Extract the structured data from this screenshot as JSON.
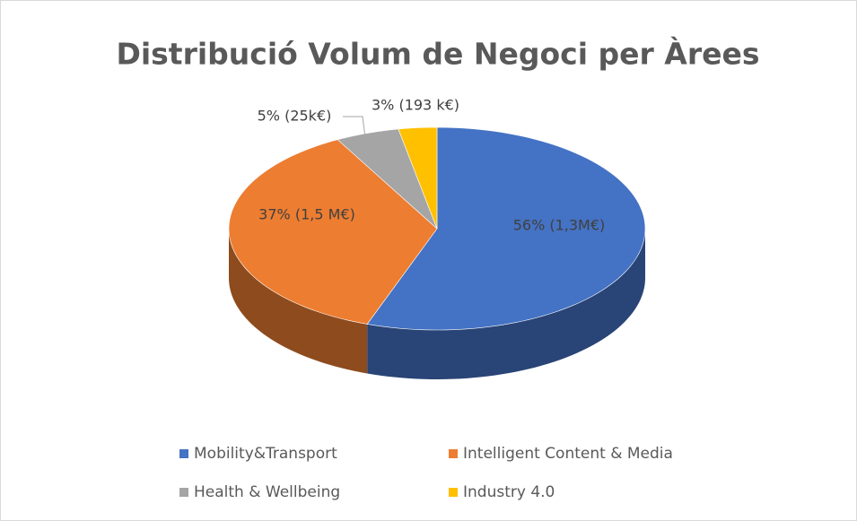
{
  "chart_data": {
    "type": "pie3d",
    "title": "Distribució Volum de Negoci per Àrees",
    "categories": [
      "Mobility&Transport",
      "Intelligent Content & Media",
      "Health & Wellbeing",
      "Industry 4.0"
    ],
    "values": [
      56,
      37,
      5,
      3
    ],
    "value_labels": [
      "56% (1,3M€)",
      "37% (1,5 M€)",
      "5% (25k€)",
      "3% (193 k€)"
    ],
    "colors": [
      "#4472c4",
      "#ed7d31",
      "#a5a5a5",
      "#ffc000"
    ],
    "legend": "bottom"
  }
}
